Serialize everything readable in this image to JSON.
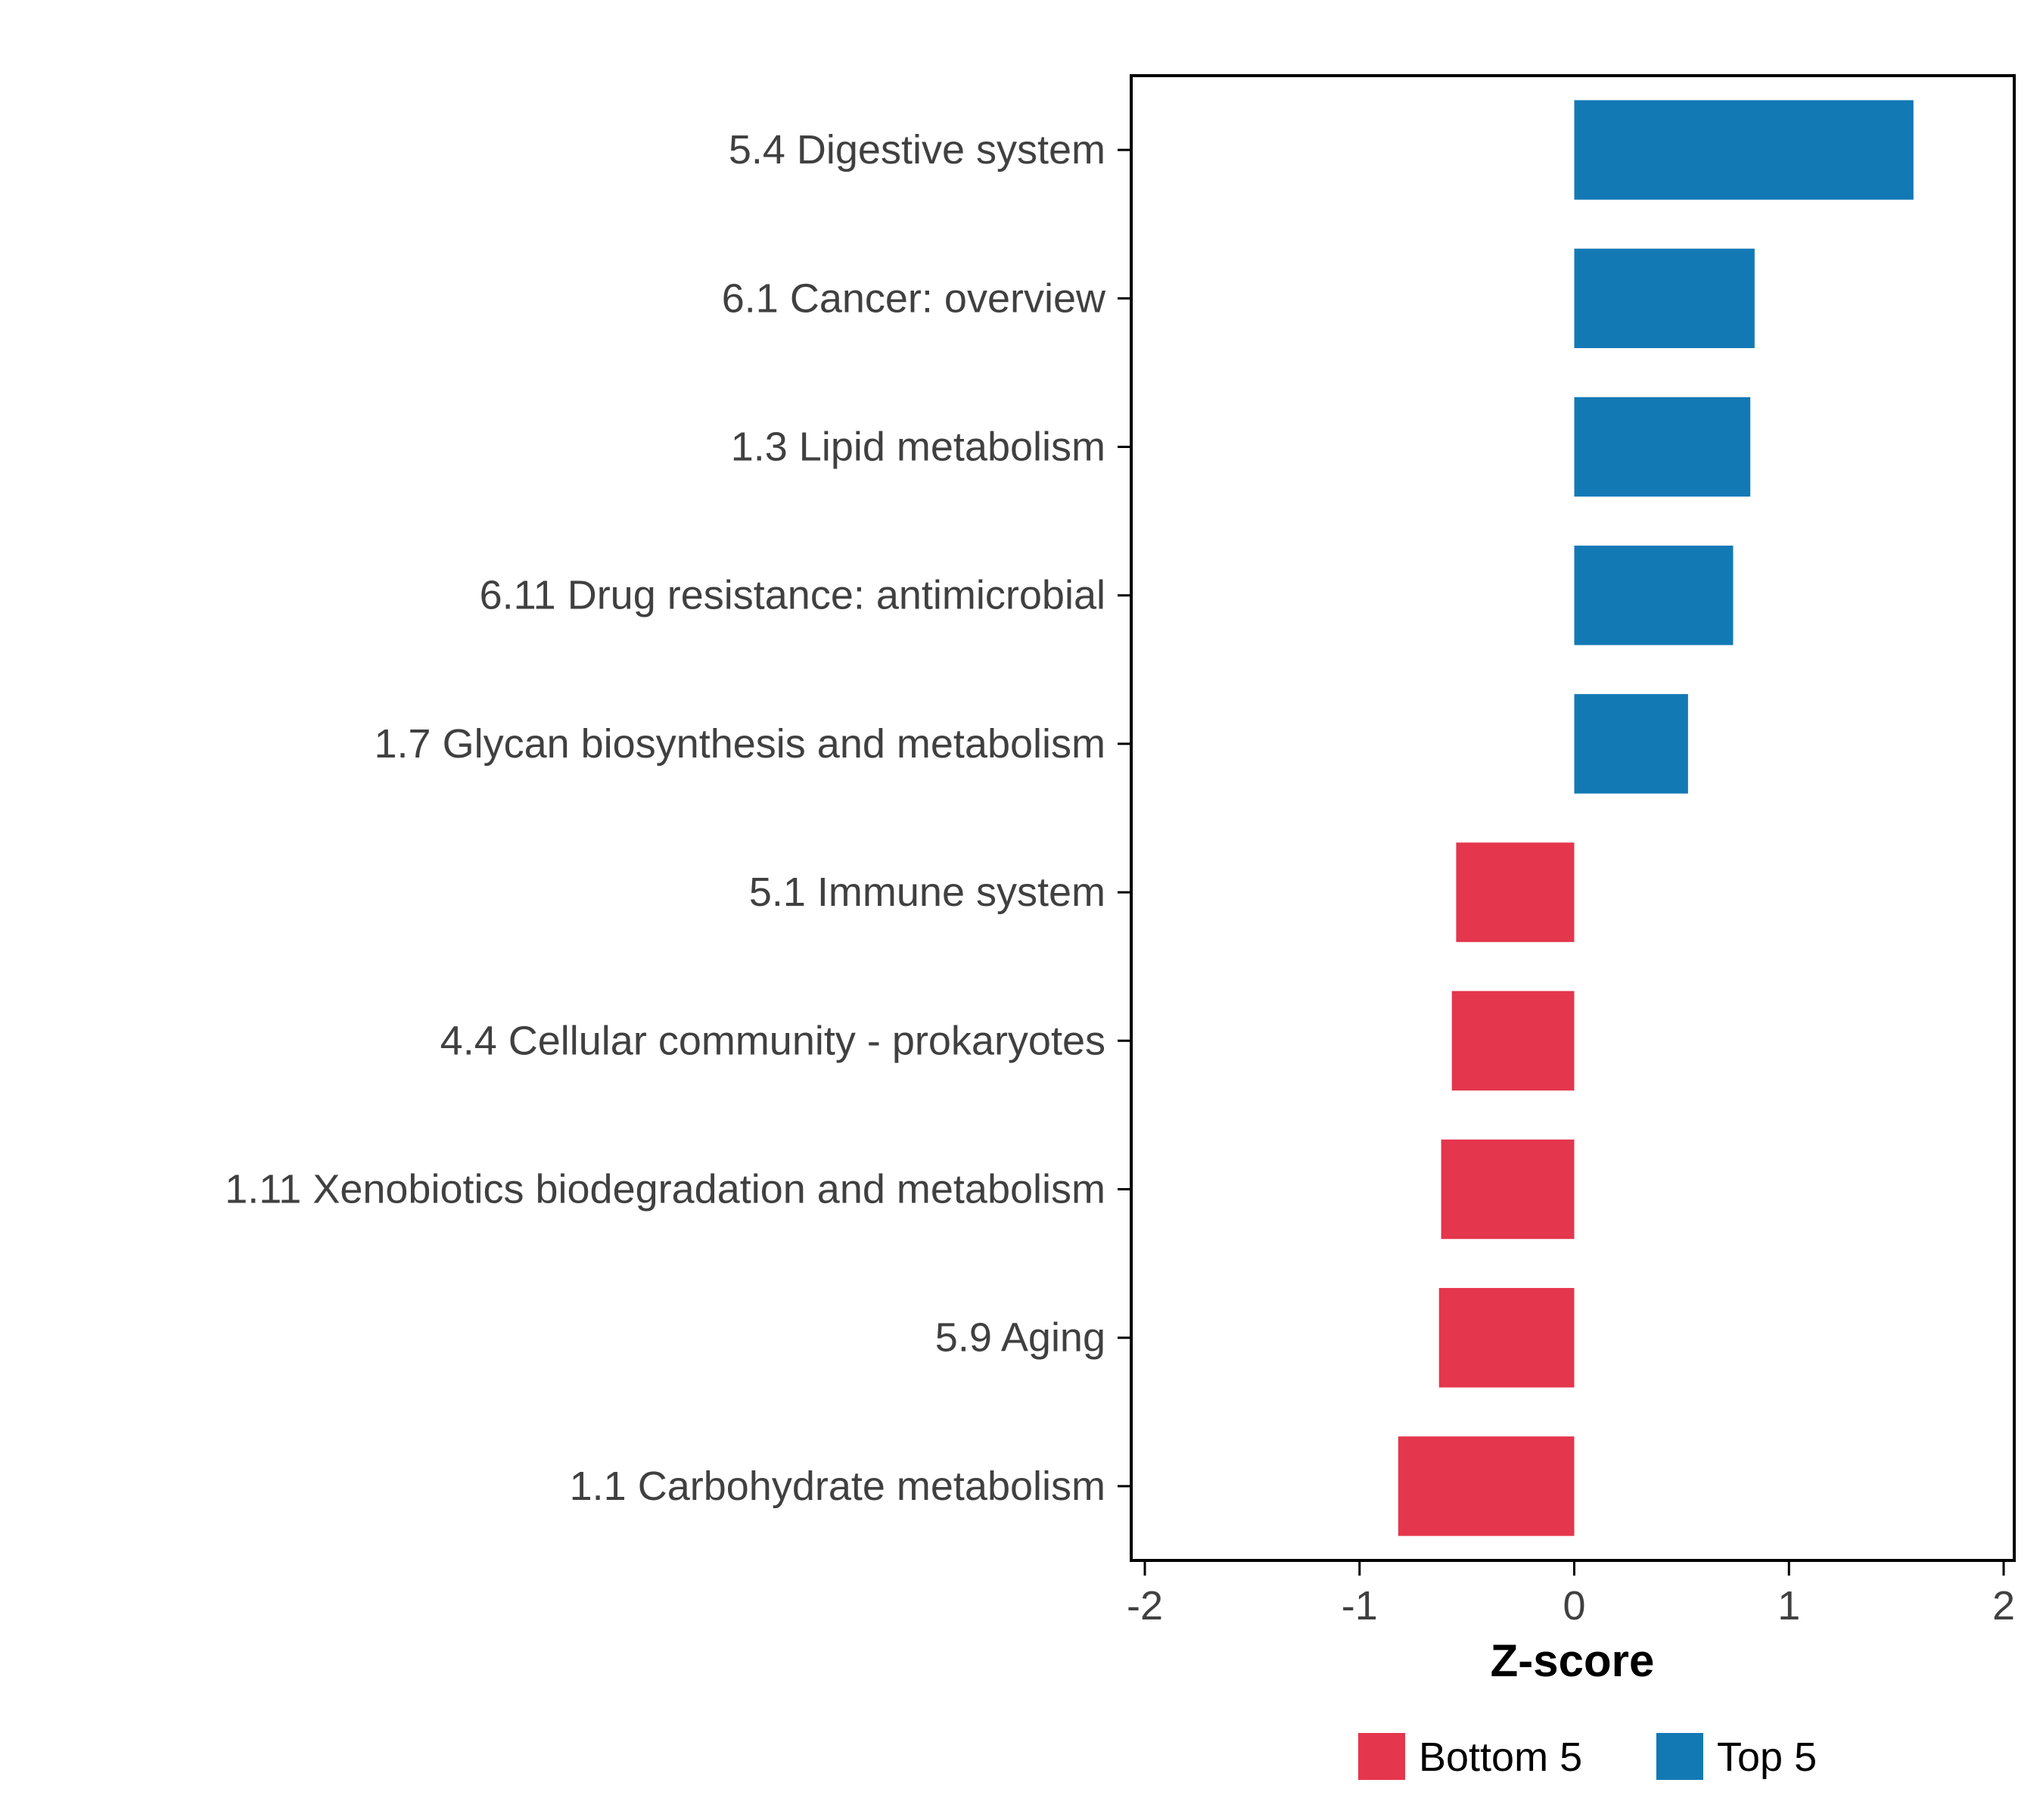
{
  "chart_data": {
    "type": "bar",
    "orientation": "horizontal",
    "title": "",
    "xlabel": "Z-score",
    "xlim": [
      -2,
      2
    ],
    "xticks": [
      "-2",
      "-1",
      "0",
      "1",
      "2"
    ],
    "xtick_values": [
      -2,
      -1,
      0,
      1,
      2
    ],
    "grid": false,
    "panel_border": true,
    "categories": [
      "5.4 Digestive system",
      "6.1 Cancer: overview",
      "1.3 Lipid metabolism",
      "6.11 Drug resistance: antimicrobial",
      "1.7 Glycan biosynthesis and metabolism",
      "5.1 Immune system",
      "4.4 Cellular community - prokaryotes",
      "1.11 Xenobiotics biodegradation and metabolism",
      "5.9 Aging",
      "1.1 Carbohydrate metabolism"
    ],
    "values": [
      1.58,
      0.84,
      0.82,
      0.74,
      0.53,
      -0.55,
      -0.57,
      -0.62,
      -0.63,
      -0.82
    ],
    "groups": [
      "Top 5",
      "Top 5",
      "Top 5",
      "Top 5",
      "Top 5",
      "Bottom 5",
      "Bottom 5",
      "Bottom 5",
      "Bottom 5",
      "Bottom 5"
    ],
    "colors": {
      "Top 5": "#1379B5",
      "Bottom 5": "#E4364C"
    },
    "legend_position": "bottom-right",
    "legend": [
      {
        "label": "Bottom 5",
        "color": "#E4364C"
      },
      {
        "label": "Top 5",
        "color": "#1379B5"
      }
    ]
  }
}
